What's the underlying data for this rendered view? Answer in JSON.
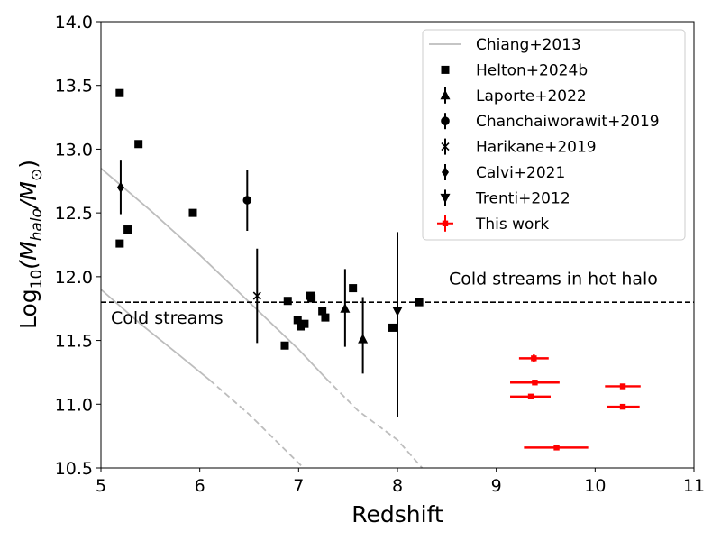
{
  "chart_data": {
    "type": "scatter",
    "xlabel": "Redshift",
    "ylabel": {
      "prefix": "Log",
      "sub1": "10",
      "open": "(M",
      "sub2": "halo",
      "slash": "/M",
      "sub3": "⊙",
      "close": ")"
    },
    "xlim": [
      5,
      11
    ],
    "ylim": [
      10.5,
      14.0
    ],
    "xticks": [
      "5",
      "6",
      "7",
      "8",
      "9",
      "10",
      "11"
    ],
    "yticks": [
      "10.5",
      "11.0",
      "11.5",
      "12.0",
      "12.5",
      "13.0",
      "13.5",
      "14.0"
    ],
    "threshold": {
      "y": 11.8,
      "style": "dashed"
    },
    "annotations": [
      {
        "text": "Cold streams",
        "x": 5.1,
        "y": 11.63
      },
      {
        "text": "Cold streams in hot halo",
        "x": 8.52,
        "y": 11.94
      }
    ],
    "chiang_lines": [
      {
        "solid": [
          [
            5.0,
            12.85
          ],
          [
            5.5,
            12.52
          ],
          [
            6.0,
            12.17
          ],
          [
            6.5,
            11.8
          ],
          [
            7.0,
            11.43
          ],
          [
            7.28,
            11.2
          ]
        ],
        "dashed": [
          [
            7.28,
            11.2
          ],
          [
            7.6,
            10.95
          ],
          [
            8.0,
            10.72
          ],
          [
            8.25,
            10.5
          ]
        ]
      },
      {
        "solid": [
          [
            5.0,
            11.9
          ],
          [
            5.4,
            11.63
          ],
          [
            5.8,
            11.38
          ],
          [
            6.1,
            11.19
          ]
        ],
        "dashed": [
          [
            6.1,
            11.19
          ],
          [
            6.5,
            10.92
          ],
          [
            7.05,
            10.5
          ]
        ]
      }
    ],
    "legend": [
      "Chiang+2013",
      "Helton+2024b",
      "Laporte+2022",
      "Chanchaiworawit+2019",
      "Harikane+2019",
      "Calvi+2021",
      "Trenti+2012",
      "This work"
    ],
    "series": [
      {
        "name": "Helton+2024b",
        "marker": "square",
        "color": "#000000",
        "points": [
          {
            "x": 5.19,
            "y": 13.44
          },
          {
            "x": 5.19,
            "y": 12.26
          },
          {
            "x": 5.27,
            "y": 12.37
          },
          {
            "x": 5.38,
            "y": 13.04
          },
          {
            "x": 5.93,
            "y": 12.5
          },
          {
            "x": 6.86,
            "y": 11.46
          },
          {
            "x": 6.89,
            "y": 11.81
          },
          {
            "x": 6.99,
            "y": 11.66
          },
          {
            "x": 7.02,
            "y": 11.61
          },
          {
            "x": 7.06,
            "y": 11.63
          },
          {
            "x": 7.12,
            "y": 11.85
          },
          {
            "x": 7.13,
            "y": 11.83
          },
          {
            "x": 7.24,
            "y": 11.73
          },
          {
            "x": 7.27,
            "y": 11.68
          },
          {
            "x": 7.55,
            "y": 11.91
          },
          {
            "x": 7.95,
            "y": 11.6
          },
          {
            "x": 8.22,
            "y": 11.8
          }
        ]
      },
      {
        "name": "Laporte+2022",
        "marker": "triangle-up",
        "color": "#000000",
        "points": [
          {
            "x": 7.47,
            "y": 11.75,
            "ylo": 11.45,
            "yhi": 12.06
          },
          {
            "x": 7.65,
            "y": 11.51,
            "ylo": 11.24,
            "yhi": 11.84
          }
        ]
      },
      {
        "name": "Chanchaiworawit+2019",
        "marker": "circle",
        "color": "#000000",
        "points": [
          {
            "x": 6.48,
            "y": 12.6,
            "ylo": 12.36,
            "yhi": 12.84
          }
        ]
      },
      {
        "name": "Harikane+2019",
        "marker": "x",
        "color": "#000000",
        "points": [
          {
            "x": 6.58,
            "y": 11.85,
            "ylo": 11.48,
            "yhi": 12.22
          }
        ]
      },
      {
        "name": "Calvi+2021",
        "marker": "diamond",
        "color": "#000000",
        "points": [
          {
            "x": 5.2,
            "y": 12.7,
            "ylo": 12.49,
            "yhi": 12.91
          }
        ]
      },
      {
        "name": "Trenti+2012",
        "marker": "triangle-down",
        "color": "#000000",
        "points": [
          {
            "x": 8.0,
            "y": 11.73,
            "ylo": 10.9,
            "yhi": 12.35
          }
        ]
      },
      {
        "name": "This work",
        "marker": "square-small",
        "color": "#ff0000",
        "points": [
          {
            "x": 9.38,
            "y": 11.36,
            "xlo": 9.23,
            "xhi": 9.53,
            "ylo": 11.33,
            "yhi": 11.39
          },
          {
            "x": 9.39,
            "y": 11.17,
            "xlo": 9.14,
            "xhi": 9.64,
            "ylo": 11.15,
            "yhi": 11.19
          },
          {
            "x": 9.35,
            "y": 11.06,
            "xlo": 9.14,
            "xhi": 9.55,
            "ylo": 11.04,
            "yhi": 11.08
          },
          {
            "x": 9.61,
            "y": 10.66,
            "xlo": 9.28,
            "xhi": 9.93,
            "ylo": 10.64,
            "yhi": 10.68
          },
          {
            "x": 10.28,
            "y": 11.14,
            "xlo": 10.1,
            "xhi": 10.46,
            "ylo": 11.12,
            "yhi": 11.16
          },
          {
            "x": 10.28,
            "y": 10.98,
            "xlo": 10.12,
            "xhi": 10.45,
            "ylo": 10.96,
            "yhi": 11.0
          }
        ]
      }
    ]
  }
}
